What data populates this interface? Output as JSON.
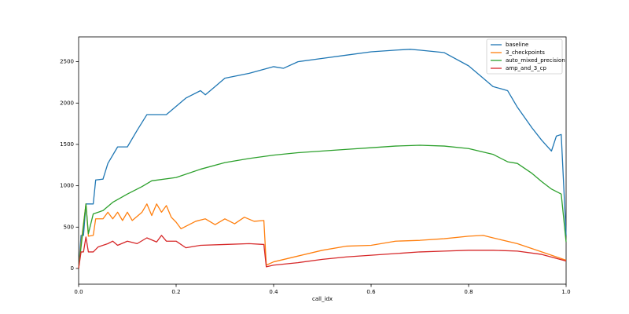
{
  "chart_data": {
    "type": "line",
    "xlabel": "call_idx",
    "xlim": [
      0,
      1
    ],
    "ylim": [
      -190,
      2800
    ],
    "xticks": [
      {
        "value": 0,
        "label": "0.0"
      },
      0.2,
      0.4,
      0.6,
      0.8,
      {
        "value": 1,
        "label": "1.0"
      }
    ],
    "yticks": [
      0,
      500,
      1000,
      1500,
      2000,
      2500
    ],
    "legend": "upper right",
    "series": [
      {
        "name": "baseline",
        "color": "#1f77b4",
        "x": [
          0,
          0.005,
          0.01,
          0.015,
          0.03,
          0.035,
          0.05,
          0.06,
          0.08,
          0.1,
          0.12,
          0.14,
          0.18,
          0.2,
          0.22,
          0.25,
          0.26,
          0.28,
          0.3,
          0.35,
          0.4,
          0.42,
          0.45,
          0.5,
          0.55,
          0.6,
          0.65,
          0.68,
          0.7,
          0.75,
          0.8,
          0.83,
          0.85,
          0.88,
          0.9,
          0.93,
          0.95,
          0.97,
          0.98,
          0.99,
          1.0
        ],
        "values": [
          0,
          400,
          400,
          780,
          780,
          1070,
          1080,
          1270,
          1470,
          1470,
          1670,
          1860,
          1860,
          1960,
          2060,
          2150,
          2100,
          2200,
          2300,
          2360,
          2440,
          2420,
          2500,
          2540,
          2580,
          2620,
          2640,
          2650,
          2640,
          2610,
          2450,
          2300,
          2200,
          2150,
          1950,
          1700,
          1550,
          1420,
          1600,
          1620,
          400
        ]
      },
      {
        "name": "3_checkpoints",
        "color": "#ff7f0e",
        "x": [
          0,
          0.005,
          0.015,
          0.02,
          0.03,
          0.035,
          0.05,
          0.06,
          0.07,
          0.08,
          0.09,
          0.1,
          0.11,
          0.13,
          0.14,
          0.15,
          0.16,
          0.17,
          0.18,
          0.19,
          0.2,
          0.21,
          0.24,
          0.26,
          0.28,
          0.3,
          0.32,
          0.34,
          0.36,
          0.38,
          0.385,
          0.4,
          0.45,
          0.5,
          0.55,
          0.6,
          0.65,
          0.7,
          0.75,
          0.8,
          0.83,
          0.85,
          0.9,
          0.95,
          1.0
        ],
        "values": [
          0,
          300,
          780,
          390,
          400,
          600,
          600,
          680,
          600,
          680,
          580,
          680,
          580,
          680,
          780,
          640,
          780,
          680,
          760,
          620,
          560,
          480,
          570,
          600,
          530,
          600,
          540,
          620,
          570,
          580,
          40,
          80,
          150,
          220,
          270,
          280,
          330,
          340,
          360,
          390,
          400,
          370,
          300,
          200,
          100
        ]
      },
      {
        "name": "auto_mixed_precision",
        "color": "#2ca02c",
        "x": [
          0,
          0.015,
          0.02,
          0.03,
          0.05,
          0.07,
          0.1,
          0.13,
          0.15,
          0.2,
          0.25,
          0.3,
          0.35,
          0.4,
          0.45,
          0.5,
          0.55,
          0.6,
          0.65,
          0.7,
          0.75,
          0.8,
          0.85,
          0.88,
          0.9,
          0.93,
          0.95,
          0.97,
          0.99,
          1.0
        ],
        "values": [
          0,
          780,
          420,
          660,
          700,
          800,
          900,
          990,
          1060,
          1100,
          1200,
          1280,
          1330,
          1370,
          1400,
          1420,
          1440,
          1460,
          1480,
          1490,
          1480,
          1450,
          1380,
          1290,
          1270,
          1150,
          1050,
          960,
          900,
          320
        ]
      },
      {
        "name": "amp_and_3_cp",
        "color": "#d62728",
        "x": [
          0,
          0.005,
          0.01,
          0.015,
          0.02,
          0.03,
          0.04,
          0.06,
          0.07,
          0.08,
          0.1,
          0.12,
          0.14,
          0.16,
          0.17,
          0.18,
          0.2,
          0.22,
          0.25,
          0.3,
          0.35,
          0.38,
          0.385,
          0.4,
          0.45,
          0.5,
          0.55,
          0.6,
          0.65,
          0.7,
          0.75,
          0.8,
          0.85,
          0.9,
          0.95,
          1.0
        ],
        "values": [
          0,
          200,
          200,
          380,
          200,
          200,
          260,
          300,
          330,
          280,
          330,
          300,
          370,
          320,
          400,
          330,
          330,
          250,
          280,
          290,
          300,
          290,
          20,
          40,
          70,
          110,
          140,
          160,
          180,
          200,
          210,
          220,
          220,
          210,
          170,
          90
        ]
      }
    ]
  }
}
